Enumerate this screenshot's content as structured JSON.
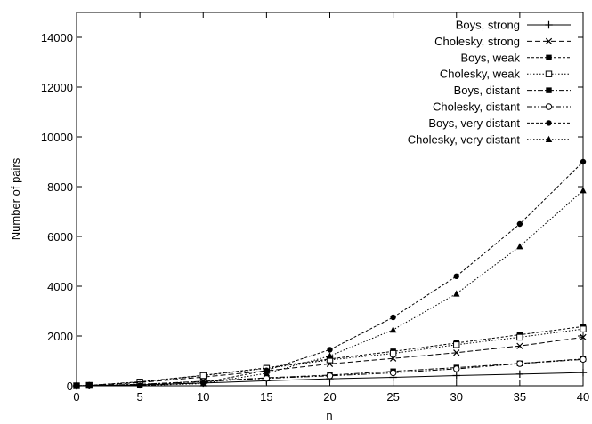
{
  "chart_data": {
    "type": "line",
    "title": "",
    "xlabel": "n",
    "ylabel": "Number of pairs",
    "xlim": [
      0,
      40
    ],
    "ylim": [
      0,
      15000
    ],
    "xticks": [
      0,
      5,
      10,
      15,
      20,
      25,
      30,
      35,
      40
    ],
    "yticks": [
      0,
      2000,
      4000,
      6000,
      8000,
      10000,
      12000,
      14000
    ],
    "grid": false,
    "legend_position": "top-right",
    "colors": {
      "line": "#000000",
      "background": "#ffffff"
    },
    "x": [
      0,
      1,
      5,
      10,
      15,
      20,
      25,
      30,
      35,
      40
    ],
    "series": [
      {
        "name": "Boys, strong",
        "marker": "plus",
        "dash": "solid",
        "values": [
          0,
          5,
          40,
          110,
          200,
          280,
          340,
          410,
          470,
          530
        ]
      },
      {
        "name": "Cholesky, strong",
        "marker": "cross",
        "dash": "long",
        "values": [
          0,
          15,
          130,
          350,
          600,
          880,
          1100,
          1330,
          1600,
          1950
        ]
      },
      {
        "name": "Boys, weak",
        "marker": "filled-square",
        "dash": "short",
        "values": [
          0,
          18,
          160,
          420,
          720,
          1080,
          1380,
          1720,
          2050,
          2380
        ]
      },
      {
        "name": "Cholesky, weak",
        "marker": "open-square",
        "dash": "dotted",
        "values": [
          0,
          18,
          150,
          410,
          700,
          1040,
          1300,
          1650,
          1950,
          2280
        ]
      },
      {
        "name": "Boys, distant",
        "marker": "filled-square",
        "dash": "dashdot",
        "values": [
          0,
          8,
          60,
          180,
          320,
          430,
          580,
          730,
          900,
          1080
        ]
      },
      {
        "name": "Cholesky, distant",
        "marker": "open-circle",
        "dash": "dashdotdot",
        "values": [
          0,
          8,
          55,
          170,
          300,
          400,
          520,
          680,
          890,
          1060
        ]
      },
      {
        "name": "Boys, very distant",
        "marker": "filled-circle",
        "dash": "short",
        "values": [
          0,
          2,
          15,
          120,
          620,
          1450,
          2750,
          4400,
          6500,
          9000
        ]
      },
      {
        "name": "Cholesky, very distant",
        "marker": "filled-triangle",
        "dash": "dotted",
        "values": [
          0,
          2,
          12,
          90,
          500,
          1200,
          2250,
          3700,
          5600,
          7850
        ]
      }
    ]
  }
}
